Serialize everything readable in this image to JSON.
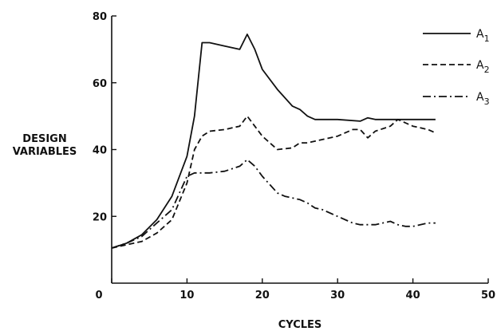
{
  "chart_data": {
    "type": "line",
    "title": "",
    "xlabel": "CYCLES",
    "ylabel_lines": [
      "DESIGN",
      "VARIABLES"
    ],
    "xlim": [
      0,
      50
    ],
    "ylim": [
      0,
      80
    ],
    "xticks": [
      0,
      10,
      20,
      30,
      40,
      50
    ],
    "yticks": [
      20,
      40,
      60,
      80
    ],
    "grid": false,
    "legend_position": "top-right",
    "series": [
      {
        "name": "A",
        "subscript": "1",
        "style": "solid",
        "x": [
          0,
          2,
          4,
          6,
          8,
          10,
          11,
          12,
          13,
          15,
          17,
          18,
          19,
          20,
          22,
          24,
          25,
          26,
          27,
          30,
          33,
          34,
          35,
          38,
          40,
          42,
          43
        ],
        "y": [
          10.5,
          12,
          14.5,
          19,
          26,
          38,
          50,
          72,
          72,
          71,
          70,
          74.5,
          70,
          64,
          58,
          53,
          52,
          50,
          49,
          49,
          48.5,
          49.5,
          49,
          49,
          49,
          49,
          49
        ]
      },
      {
        "name": "A",
        "subscript": "2",
        "style": "dashed",
        "x": [
          0,
          2,
          4,
          6,
          8,
          10,
          11,
          12,
          13,
          15,
          17,
          18,
          19,
          20,
          22,
          24,
          25,
          26,
          28,
          30,
          32,
          33,
          34,
          35,
          37,
          38,
          40,
          42,
          43
        ],
        "y": [
          10.5,
          11.5,
          12.5,
          15,
          19,
          30,
          40,
          44,
          45.5,
          46,
          47,
          50,
          47,
          44,
          40,
          40.5,
          42,
          42,
          43,
          44,
          46,
          46,
          43.5,
          45.5,
          47,
          49,
          47,
          46,
          45
        ]
      },
      {
        "name": "A",
        "subscript": "3",
        "style": "dashdot",
        "x": [
          0,
          2,
          4,
          6,
          8,
          10,
          11,
          12,
          13,
          15,
          17,
          18,
          19,
          20,
          22,
          23,
          25,
          26,
          27,
          28,
          30,
          32,
          33,
          34,
          35,
          36,
          37,
          38,
          39,
          40,
          42,
          43
        ],
        "y": [
          10.5,
          12,
          14,
          18,
          22,
          32,
          33,
          33,
          33,
          33.5,
          35,
          37,
          35,
          32,
          27,
          26,
          25,
          24,
          22.5,
          22,
          20,
          18,
          17.5,
          17.5,
          17.5,
          18,
          18.5,
          17.5,
          17,
          17,
          18,
          18
        ]
      }
    ]
  }
}
